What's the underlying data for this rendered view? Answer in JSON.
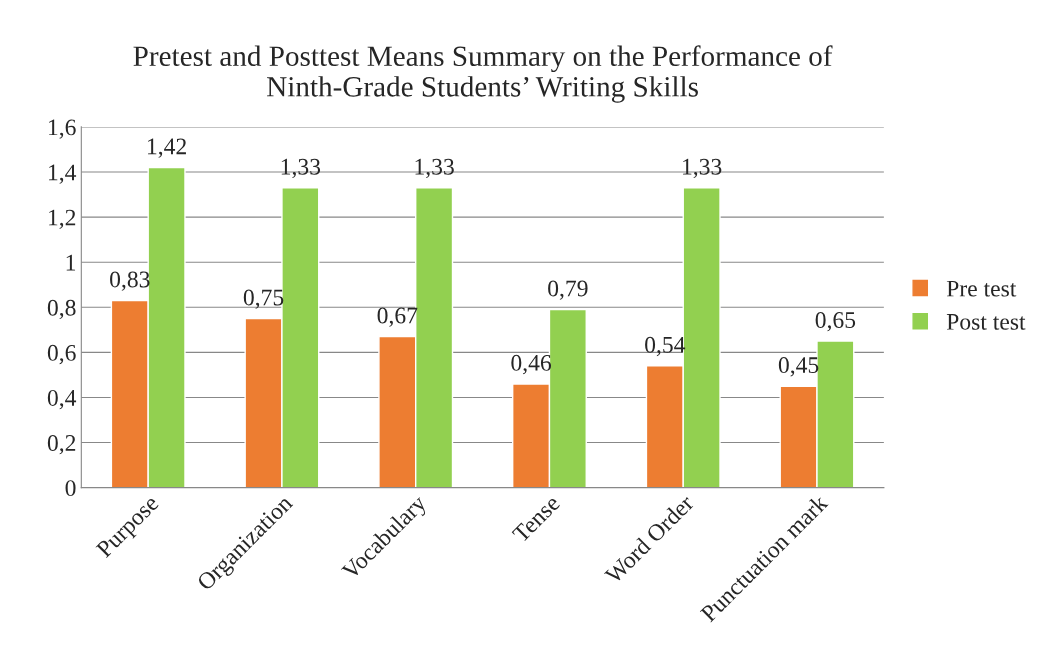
{
  "chart_data": {
    "type": "bar",
    "title": "Pretest and Posttest Means Summary on the Performance of\nNinth-Grade Students’ Writing Skills",
    "categories": [
      "Purpose",
      "Organization",
      "Vocabulary",
      "Tense",
      "Word Order",
      "Punctuation mark"
    ],
    "series": [
      {
        "name": "Pre test",
        "color": "#ed7d31",
        "values": [
          0.83,
          0.75,
          0.67,
          0.46,
          0.54,
          0.45
        ],
        "value_labels": [
          "0,83",
          "0,75",
          "0,67",
          "0,46",
          "0,54",
          "0,45"
        ]
      },
      {
        "name": "Post test",
        "color": "#92d050",
        "values": [
          1.42,
          1.33,
          1.33,
          0.79,
          1.33,
          0.65
        ],
        "value_labels": [
          "1,42",
          "1,33",
          "1,33",
          "0,79",
          "1,33",
          "0,65"
        ]
      }
    ],
    "ylim": [
      0,
      1.6
    ],
    "yticks": [
      0,
      {
        "value": 0.2,
        "label": "0,2"
      },
      {
        "value": 0.4,
        "label": "0,4"
      },
      {
        "value": 0.6,
        "label": "0,6"
      },
      {
        "value": 0.8,
        "label": "0,8"
      },
      1,
      {
        "value": 1.2,
        "label": "1,2"
      },
      {
        "value": 1.4,
        "label": "1,4"
      },
      {
        "value": 1.6,
        "label": "1,6"
      }
    ],
    "grid": "y",
    "legend": "right"
  }
}
